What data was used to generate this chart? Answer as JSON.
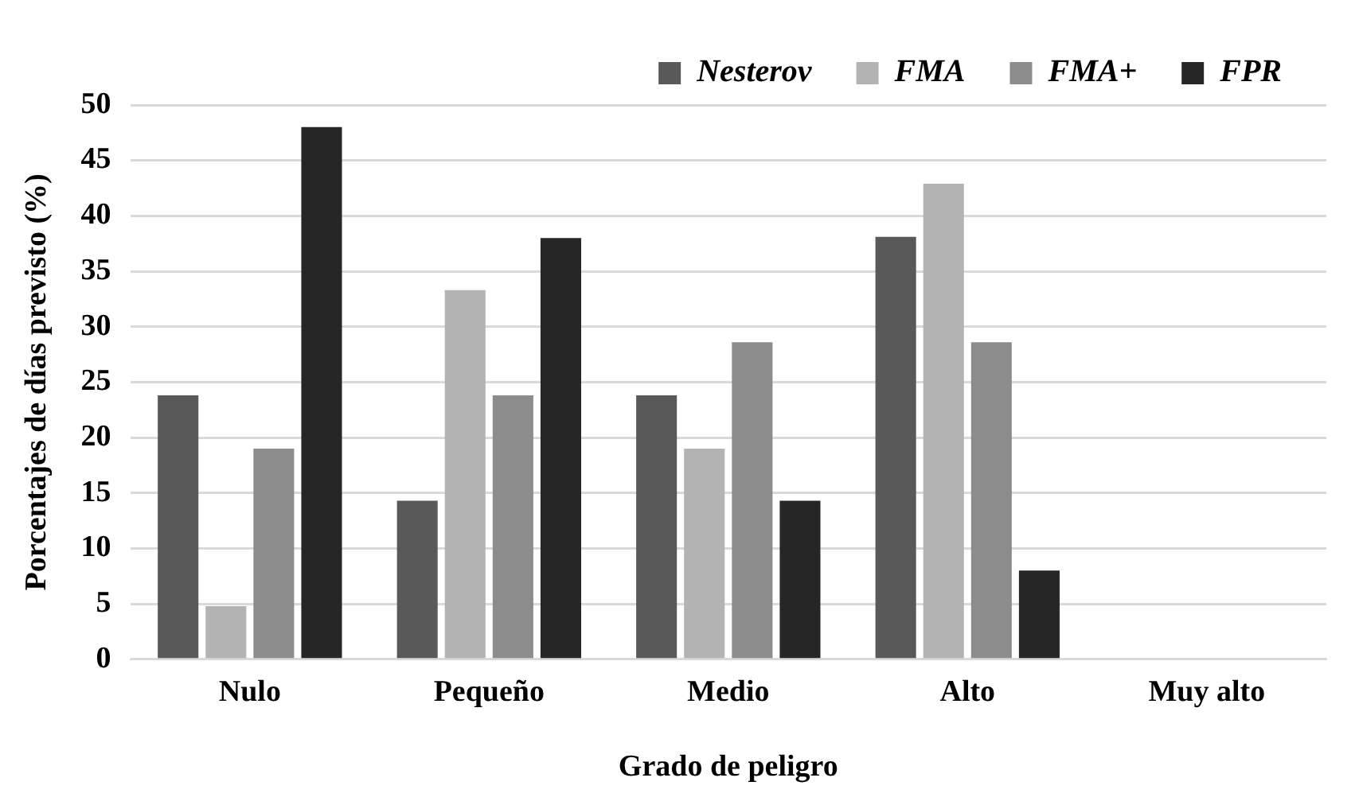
{
  "chart_data": {
    "type": "bar",
    "xlabel": "Grado de peligro",
    "ylabel": "Porcentajes de días previsto (%)",
    "categories": [
      "Nulo",
      "Pequeño",
      "Medio",
      "Alto",
      "Muy alto"
    ],
    "series": [
      {
        "name": "Nesterov",
        "color": "#595959",
        "values": [
          23.8,
          14.3,
          23.8,
          38.1,
          0
        ]
      },
      {
        "name": "FMA",
        "color": "#b3b3b3",
        "values": [
          4.8,
          33.3,
          19,
          42.9,
          0
        ]
      },
      {
        "name": "FMA+",
        "color": "#8c8c8c",
        "values": [
          19,
          23.8,
          28.6,
          28.6,
          0
        ]
      },
      {
        "name": "FPR",
        "color": "#262626",
        "values": [
          48,
          38,
          14.3,
          8,
          0
        ]
      }
    ],
    "ylim": [
      0,
      50
    ],
    "yticks": [
      0,
      5,
      10,
      15,
      20,
      25,
      30,
      35,
      40,
      45,
      50
    ],
    "grid": "y",
    "legend": "top right"
  }
}
